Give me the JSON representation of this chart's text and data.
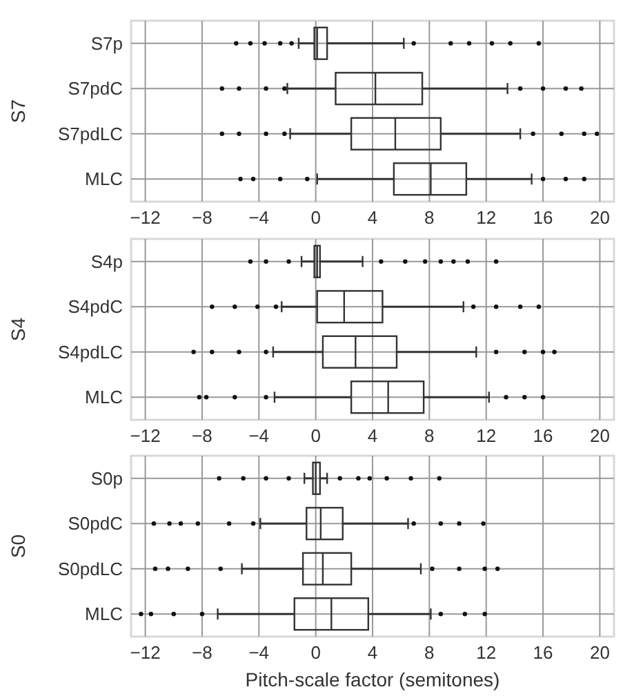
{
  "chart_data": [
    {
      "type": "box",
      "orientation": "horizontal",
      "ylabel": "S7",
      "categories": [
        "S7p",
        "S7pdC",
        "S7pdLC",
        "MLC"
      ],
      "color": "#333333",
      "grid": true,
      "xlim": [
        -13,
        21
      ],
      "xticks": [
        {
          "value": -12,
          "label": "−12"
        },
        {
          "value": -8,
          "label": "−8"
        },
        {
          "value": -4,
          "label": "−4"
        },
        0,
        4,
        8,
        12,
        16,
        20
      ],
      "boxes": [
        {
          "low": -1.2,
          "q1": -0.1,
          "median": 0.1,
          "q3": 0.8,
          "high": 6.2,
          "outliers": [
            -5.6,
            -4.6,
            -3.6,
            -2.5,
            -1.7,
            6.9,
            9.5,
            10.8,
            12.4,
            13.7,
            15.7
          ]
        },
        {
          "low": -2.0,
          "q1": 1.4,
          "median": 4.2,
          "q3": 7.5,
          "high": 13.5,
          "outliers": [
            -6.6,
            -5.4,
            -3.5,
            -2.2,
            14.4,
            16.0,
            17.6,
            18.7
          ]
        },
        {
          "low": -1.8,
          "q1": 2.5,
          "median": 5.6,
          "q3": 8.8,
          "high": 14.4,
          "outliers": [
            -6.6,
            -5.4,
            -3.5,
            -2.2,
            15.3,
            17.3,
            18.9,
            19.8
          ]
        },
        {
          "low": 0.1,
          "q1": 5.5,
          "median": 8.1,
          "q3": 10.6,
          "high": 15.2,
          "outliers": [
            -5.3,
            -4.4,
            -2.5,
            -0.6,
            16.0,
            17.6,
            18.9
          ]
        }
      ]
    },
    {
      "type": "box",
      "orientation": "horizontal",
      "ylabel": "S4",
      "categories": [
        "S4p",
        "S4pdC",
        "S4pdLC",
        "MLC"
      ],
      "color": "#333333",
      "grid": true,
      "xlim": [
        -13,
        21
      ],
      "xticks": [
        {
          "value": -12,
          "label": "−12"
        },
        {
          "value": -8,
          "label": "−8"
        },
        {
          "value": -4,
          "label": "−4"
        },
        0,
        4,
        8,
        12,
        16,
        20
      ],
      "boxes": [
        {
          "low": -1.0,
          "q1": -0.1,
          "median": 0.1,
          "q3": 0.3,
          "high": 3.3,
          "outliers": [
            -4.6,
            -3.5,
            -1.9,
            4.6,
            6.3,
            7.7,
            8.8,
            9.7,
            10.7,
            12.7
          ]
        },
        {
          "low": -2.4,
          "q1": 0.1,
          "median": 2.0,
          "q3": 4.7,
          "high": 10.4,
          "outliers": [
            -7.3,
            -5.7,
            -4.1,
            -2.8,
            11.1,
            12.7,
            14.4,
            15.7
          ]
        },
        {
          "low": -3.0,
          "q1": 0.5,
          "median": 2.8,
          "q3": 5.7,
          "high": 11.3,
          "outliers": [
            -8.6,
            -7.3,
            -5.4,
            -3.5,
            12.7,
            14.7,
            16.0,
            16.8
          ]
        },
        {
          "low": -2.9,
          "q1": 2.5,
          "median": 5.1,
          "q3": 7.6,
          "high": 12.2,
          "outliers": [
            -8.2,
            -7.7,
            -5.7,
            -3.5,
            13.4,
            14.7,
            16.0
          ]
        }
      ]
    },
    {
      "type": "box",
      "orientation": "horizontal",
      "ylabel": "S0",
      "xlabel": "Pitch-scale factor (semitones)",
      "categories": [
        "S0p",
        "S0pdC",
        "S0pdLC",
        "MLC"
      ],
      "color": "#333333",
      "grid": true,
      "xlim": [
        -13,
        21
      ],
      "xticks": [
        {
          "value": -12,
          "label": "−12"
        },
        {
          "value": -8,
          "label": "−8"
        },
        {
          "value": -4,
          "label": "−4"
        },
        0,
        4,
        8,
        12,
        16,
        20
      ],
      "boxes": [
        {
          "low": -0.8,
          "q1": -0.2,
          "median": 0.0,
          "q3": 0.3,
          "high": 0.8,
          "outliers": [
            -6.8,
            -5.1,
            -3.5,
            -1.9,
            1.7,
            3.0,
            3.8,
            5.0,
            6.7,
            8.7
          ]
        },
        {
          "low": -3.9,
          "q1": -0.65,
          "median": 0.35,
          "q3": 1.9,
          "high": 6.5,
          "outliers": [
            -11.4,
            -10.3,
            -9.5,
            -8.3,
            -6.1,
            -4.4,
            6.9,
            8.8,
            10.1,
            11.8
          ]
        },
        {
          "low": -5.2,
          "q1": -0.9,
          "median": 0.5,
          "q3": 2.5,
          "high": 7.4,
          "outliers": [
            -11.3,
            -10.4,
            -9.0,
            -6.7,
            8.2,
            10.1,
            11.9,
            12.8
          ]
        },
        {
          "low": -6.9,
          "q1": -1.5,
          "median": 1.1,
          "q3": 3.7,
          "high": 8.1,
          "outliers": [
            -12.3,
            -11.6,
            -10.0,
            -8.0,
            8.8,
            10.5,
            11.9
          ]
        }
      ]
    }
  ]
}
